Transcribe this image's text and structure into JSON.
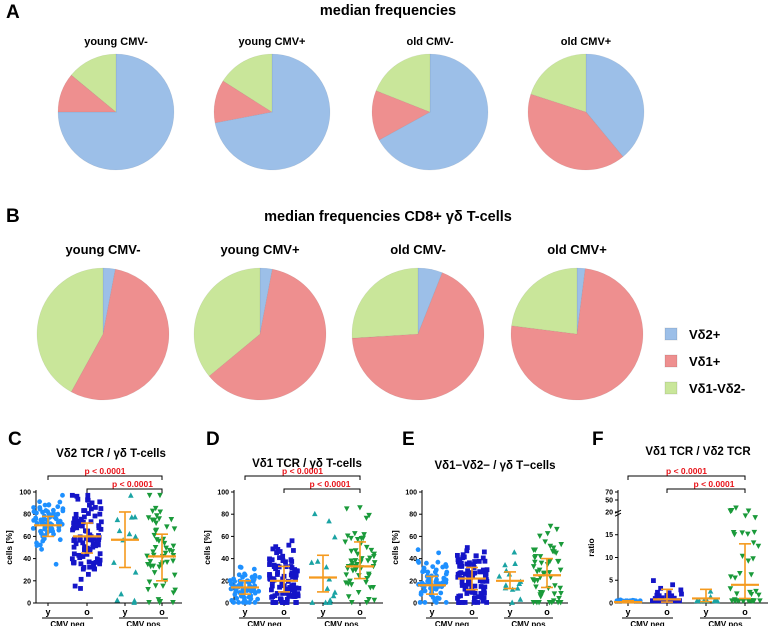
{
  "panel_letters": [
    "A",
    "B",
    "C",
    "D",
    "E",
    "F"
  ],
  "chart_data": [
    {
      "type": "pie",
      "panel": "A",
      "title": "median frequencies",
      "series_labels": [
        "Vδ2+",
        "Vδ1+",
        "Vδ1-Vδ2-"
      ],
      "pies": [
        {
          "label": "young CMV-",
          "values": [
            75,
            11,
            14
          ]
        },
        {
          "label": "young CMV+",
          "values": [
            72,
            12,
            16
          ]
        },
        {
          "label": "old CMV-",
          "values": [
            67,
            14,
            19
          ]
        },
        {
          "label": "old CMV+",
          "values": [
            39,
            41,
            20
          ]
        }
      ]
    },
    {
      "type": "pie",
      "panel": "B",
      "title": "median frequencies CD8+ γδ T-cells",
      "series_labels": [
        "Vδ2+",
        "Vδ1+",
        "Vδ1-Vδ2-"
      ],
      "pies": [
        {
          "label": "young CMV-",
          "values": [
            3,
            55,
            42
          ]
        },
        {
          "label": "young CMV+",
          "values": [
            3,
            61,
            36
          ]
        },
        {
          "label": "old CMV-",
          "values": [
            6,
            68,
            26
          ]
        },
        {
          "label": "old CMV+",
          "values": [
            2,
            75,
            23
          ]
        }
      ]
    },
    {
      "type": "scatter",
      "panel": "C",
      "title": "Vδ2 TCR / γδ T-cells",
      "ylabel": "cells [%]",
      "ylim": [
        0,
        100
      ],
      "yticks": [
        "0",
        "20",
        "40",
        "60",
        "80",
        "100"
      ],
      "categories": [
        "y",
        "o",
        "y",
        "o"
      ],
      "groups": [
        "CMV neg",
        "CMV pos"
      ],
      "series": [
        {
          "name": "y CMV neg",
          "color": "#1e90ff",
          "marker": "circle",
          "median": 70,
          "q1": 60,
          "q3": 78,
          "n": 70
        },
        {
          "name": "o CMV neg",
          "color": "#1515c8",
          "marker": "square",
          "median": 60,
          "q1": 45,
          "q3": 72,
          "n": 100
        },
        {
          "name": "y CMV pos",
          "color": "#1aa3a3",
          "marker": "triangle",
          "median": 57,
          "q1": 32,
          "q3": 82,
          "n": 14
        },
        {
          "name": "o CMV pos",
          "color": "#1a9a3a",
          "marker": "triangle-down",
          "median": 42,
          "q1": 20,
          "q3": 62,
          "n": 55
        }
      ],
      "annotations": [
        "p < 0.0001",
        "p < 0.0001"
      ]
    },
    {
      "type": "scatter",
      "panel": "D",
      "title": "Vδ1 TCR / γδ T-cells",
      "ylabel": "cells [%]",
      "ylim": [
        0,
        100
      ],
      "yticks": [
        "0",
        "20",
        "40",
        "60",
        "80",
        "100"
      ],
      "categories": [
        "y",
        "o",
        "y",
        "o"
      ],
      "groups": [
        "CMV neg",
        "CMV pos"
      ],
      "series": [
        {
          "name": "y CMV neg",
          "color": "#1e90ff",
          "marker": "circle",
          "median": 14,
          "q1": 8,
          "q3": 20,
          "n": 70
        },
        {
          "name": "o CMV neg",
          "color": "#1515c8",
          "marker": "square",
          "median": 20,
          "q1": 10,
          "q3": 33,
          "n": 100
        },
        {
          "name": "y CMV pos",
          "color": "#1aa3a3",
          "marker": "triangle",
          "median": 23,
          "q1": 10,
          "q3": 43,
          "n": 14
        },
        {
          "name": "o CMV pos",
          "color": "#1a9a3a",
          "marker": "triangle-down",
          "median": 33,
          "q1": 22,
          "q3": 55,
          "n": 55
        }
      ],
      "annotations": [
        "p < 0.0001",
        "p < 0.0001"
      ]
    },
    {
      "type": "scatter",
      "panel": "E",
      "title": "Vδ1−Vδ2− / γδ T−cells",
      "ylabel": "cells [%]",
      "ylim": [
        0,
        100
      ],
      "yticks": [
        "0",
        "20",
        "40",
        "60",
        "80",
        "100"
      ],
      "categories": [
        "y",
        "o",
        "y",
        "o"
      ],
      "groups": [
        "CMV neg",
        "CMV pos"
      ],
      "series": [
        {
          "name": "y CMV neg",
          "color": "#1e90ff",
          "marker": "circle",
          "median": 16,
          "q1": 8,
          "q3": 24,
          "n": 70
        },
        {
          "name": "o CMV neg",
          "color": "#1515c8",
          "marker": "square",
          "median": 22,
          "q1": 12,
          "q3": 32,
          "n": 100
        },
        {
          "name": "y CMV pos",
          "color": "#1aa3a3",
          "marker": "triangle",
          "median": 20,
          "q1": 13,
          "q3": 28,
          "n": 14
        },
        {
          "name": "o CMV pos",
          "color": "#1a9a3a",
          "marker": "triangle-down",
          "median": 25,
          "q1": 14,
          "q3": 40,
          "n": 55
        }
      ],
      "annotations": []
    },
    {
      "type": "scatter",
      "panel": "F",
      "title": "Vδ1 TCR / Vδ2 TCR",
      "ylabel": "ratio",
      "ylim": [
        0,
        70
      ],
      "yticks": [
        "0",
        "5",
        "10",
        "15",
        "20",
        "50",
        "70"
      ],
      "categories": [
        "y",
        "o",
        "y",
        "o"
      ],
      "groups": [
        "CMV neg",
        "CMV pos"
      ],
      "series": [
        {
          "name": "y CMV neg",
          "color": "#1e90ff",
          "marker": "circle",
          "median": 0.2,
          "q1": 0.1,
          "q3": 0.5,
          "n": 12
        },
        {
          "name": "o CMV neg",
          "color": "#1515c8",
          "marker": "square",
          "median": 0.8,
          "q1": 0.2,
          "q3": 3,
          "n": 30
        },
        {
          "name": "y CMV pos",
          "color": "#1aa3a3",
          "marker": "triangle",
          "median": 1.0,
          "q1": 0.3,
          "q3": 3,
          "n": 10
        },
        {
          "name": "o CMV pos",
          "color": "#1a9a3a",
          "marker": "triangle-down",
          "median": 4,
          "q1": 1,
          "q3": 13,
          "n": 45
        }
      ],
      "annotations": [
        "p < 0.0001",
        "p < 0.0001"
      ]
    }
  ],
  "legend": [
    {
      "label": "Vδ2+",
      "color": "#9cbfe8"
    },
    {
      "label": "Vδ1+",
      "color": "#ee8f8f"
    },
    {
      "label": "Vδ1-Vδ2-",
      "color": "#c9e69a"
    }
  ],
  "colors": {
    "vd2": "#9cbfe8",
    "vd1": "#ee8f8f",
    "dn": "#c9e69a",
    "median_bar": "#f59a1e",
    "pvalue": "#e8141a"
  }
}
